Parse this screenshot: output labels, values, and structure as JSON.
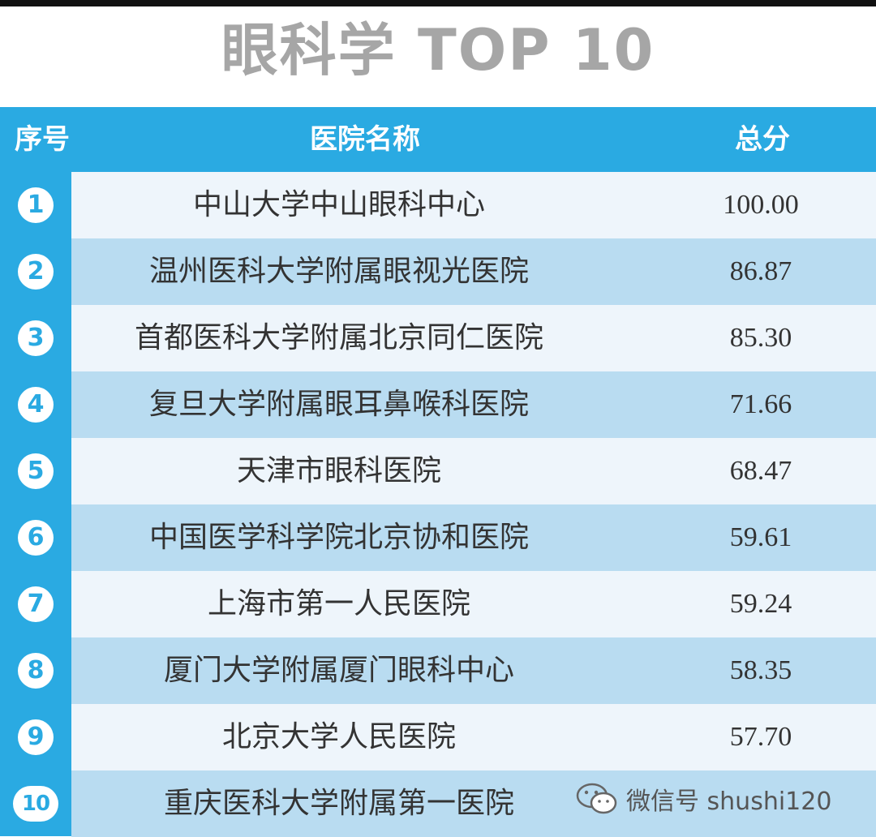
{
  "title": "眼科学 TOP 10",
  "table": {
    "headers": {
      "rank": "序号",
      "name": "医院名称",
      "score": "总分"
    },
    "rows": [
      {
        "rank": "1",
        "name": "中山大学中山眼科中心",
        "score": "100.00"
      },
      {
        "rank": "2",
        "name": "温州医科大学附属眼视光医院",
        "score": "86.87"
      },
      {
        "rank": "3",
        "name": "首都医科大学附属北京同仁医院",
        "score": "85.30"
      },
      {
        "rank": "4",
        "name": "复旦大学附属眼耳鼻喉科医院",
        "score": "71.66"
      },
      {
        "rank": "5",
        "name": "天津市眼科医院",
        "score": "68.47"
      },
      {
        "rank": "6",
        "name": "中国医学科学院北京协和医院",
        "score": "59.61"
      },
      {
        "rank": "7",
        "name": "上海市第一人民医院",
        "score": "59.24"
      },
      {
        "rank": "8",
        "name": "厦门大学附属厦门眼科中心",
        "score": "58.35"
      },
      {
        "rank": "9",
        "name": "北京大学人民医院",
        "score": "57.70"
      },
      {
        "rank": "10",
        "name": "重庆医科大学附属第一医院",
        "score": ""
      }
    ]
  },
  "watermark": {
    "icon": "wechat-icon",
    "text": "微信号 shushi120"
  },
  "colors": {
    "accent": "#2aaae2",
    "row_light": "#eef5fb",
    "row_dark": "#b9dcf1",
    "title": "#a6a6a6"
  }
}
